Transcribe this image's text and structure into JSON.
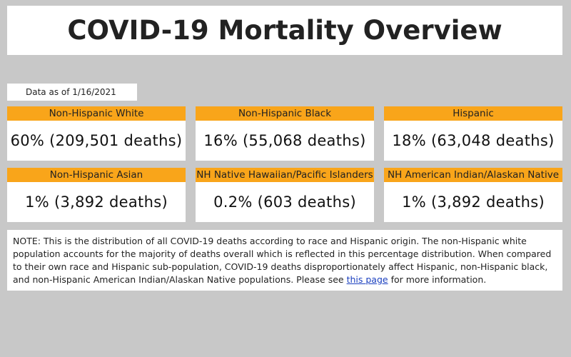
{
  "header": {
    "title": "COVID-19 Mortality Overview",
    "date_note": "Data as of 1/16/2021"
  },
  "cards": [
    {
      "label": "Non-Hispanic White",
      "value": "60% (209,501 deaths)"
    },
    {
      "label": "Non-Hispanic Black",
      "value": "16% (55,068 deaths)"
    },
    {
      "label": "Hispanic",
      "value": "18% (63,048 deaths)"
    },
    {
      "label": "Non-Hispanic Asian",
      "value": "1% (3,892 deaths)"
    },
    {
      "label": "NH Native Hawaiian/Pacific Islanders",
      "value": "0.2% (603 deaths)"
    },
    {
      "label": "NH American Indian/Alaskan Native",
      "value": "1% (3,892 deaths)"
    }
  ],
  "note": {
    "text": "NOTE: This is the distribution of all COVID-19 deaths according to race and Hispanic origin.  The non-Hispanic white population accounts for the majority of deaths overall which is reflected in this percentage distribution.  When compared to their own race and Hispanic sub-population, COVID-19 deaths disproportionately affect Hispanic, non-Hispanic black, and non-Hispanic American Indian/Alaskan Native populations.  Please see",
    "link": "this page",
    "text_after": "for more information."
  }
}
